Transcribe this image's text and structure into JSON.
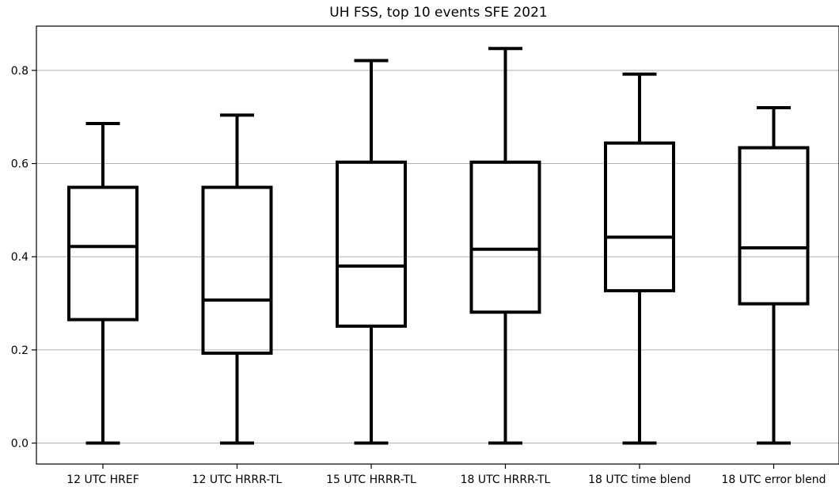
{
  "chart_data": {
    "type": "boxplot",
    "title": "UH FSS, top 10 events SFE 2021",
    "xlabel": "",
    "ylabel": "",
    "ylim": [
      -0.045,
      0.895
    ],
    "yticks": [
      0.0,
      0.2,
      0.4,
      0.6,
      0.8
    ],
    "ytick_labels": [
      "0.0",
      "0.2",
      "0.4",
      "0.6",
      "0.8"
    ],
    "grid": "horizontal",
    "legend": "none",
    "categories": [
      "12 UTC HREF",
      "12 UTC HRRR-TL",
      "15 UTC HRRR-TL",
      "18 UTC HRRR-TL",
      "18 UTC time blend",
      "18 UTC error blend"
    ],
    "boxes": [
      {
        "whisker_low": 0.0,
        "q1": 0.265,
        "median": 0.422,
        "q3": 0.549,
        "whisker_high": 0.686
      },
      {
        "whisker_low": 0.0,
        "q1": 0.193,
        "median": 0.307,
        "q3": 0.549,
        "whisker_high": 0.704
      },
      {
        "whisker_low": 0.0,
        "q1": 0.251,
        "median": 0.38,
        "q3": 0.603,
        "whisker_high": 0.821
      },
      {
        "whisker_low": 0.0,
        "q1": 0.281,
        "median": 0.416,
        "q3": 0.603,
        "whisker_high": 0.847
      },
      {
        "whisker_low": 0.0,
        "q1": 0.327,
        "median": 0.442,
        "q3": 0.644,
        "whisker_high": 0.792
      },
      {
        "whisker_low": 0.0,
        "q1": 0.299,
        "median": 0.419,
        "q3": 0.634,
        "whisker_high": 0.72
      }
    ],
    "colors": {
      "box_stroke": "#000000",
      "grid": "#b0b0b0",
      "axis": "#000000",
      "background": "#ffffff"
    }
  }
}
